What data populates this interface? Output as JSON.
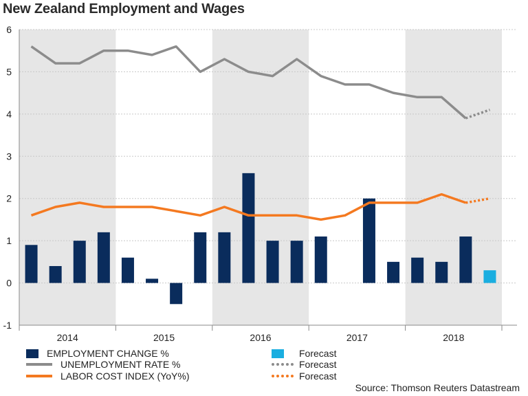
{
  "chart_data": {
    "type": "bar+line",
    "title": "New Zealand Employment and Wages",
    "ylim": [
      -1,
      6
    ],
    "yticks": [
      6,
      5,
      4,
      3,
      2,
      1,
      0,
      -1
    ],
    "years": [
      "2014",
      "2015",
      "2016",
      "2017",
      "2018"
    ],
    "quarters": 20,
    "shaded_years": [
      "2014",
      "2016",
      "2018"
    ],
    "series": [
      {
        "name": "EMPLOYMENT CHANGE %",
        "type": "bar",
        "color": "#0a2c5c",
        "values": [
          0.9,
          0.4,
          1.0,
          1.2,
          0.6,
          0.1,
          -0.5,
          1.2,
          1.2,
          2.6,
          1.0,
          1.0,
          1.1,
          null,
          2.0,
          0.5,
          0.6,
          0.5,
          1.1,
          null
        ]
      },
      {
        "name": "Forecast",
        "type": "bar",
        "color": "#1aaee0",
        "values": [
          null,
          null,
          null,
          null,
          null,
          null,
          null,
          null,
          null,
          null,
          null,
          null,
          null,
          null,
          null,
          null,
          null,
          null,
          null,
          0.3
        ]
      },
      {
        "name": "UNEMPLOYMENT RATE %",
        "type": "line",
        "color": "#8c8c8c",
        "values": [
          5.6,
          5.2,
          5.2,
          5.5,
          5.5,
          5.4,
          5.6,
          5.0,
          5.3,
          5.0,
          4.9,
          5.3,
          4.9,
          4.7,
          4.7,
          4.5,
          4.4,
          4.4,
          3.9,
          null
        ],
        "forecast": [
          null,
          null,
          null,
          null,
          null,
          null,
          null,
          null,
          null,
          null,
          null,
          null,
          null,
          null,
          null,
          null,
          null,
          null,
          3.9,
          4.1
        ]
      },
      {
        "name": "LABOR COST INDEX (YoY%)",
        "type": "line",
        "color": "#f47920",
        "values": [
          1.6,
          1.8,
          1.9,
          1.8,
          1.8,
          1.8,
          1.7,
          1.6,
          1.8,
          1.6,
          1.6,
          1.6,
          1.5,
          1.6,
          1.9,
          1.9,
          1.9,
          2.1,
          1.9,
          null
        ],
        "forecast": [
          null,
          null,
          null,
          null,
          null,
          null,
          null,
          null,
          null,
          null,
          null,
          null,
          null,
          null,
          null,
          null,
          null,
          null,
          1.9,
          2.0
        ]
      }
    ]
  },
  "legend": {
    "employment_label": "EMPLOYMENT CHANGE %",
    "employment_forecast_label": "Forecast",
    "unemployment_label": "UNEMPLOYMENT RATE %",
    "unemployment_forecast_label": "Forecast",
    "lci_label": "LABOR COST INDEX (YoY%)",
    "lci_forecast_label": "Forecast"
  },
  "source": "Source: Thomson Reuters Datastream",
  "colors": {
    "shade": "#e6e6e6",
    "grid": "#c8c8c8",
    "axis": "#8a8a8a"
  }
}
